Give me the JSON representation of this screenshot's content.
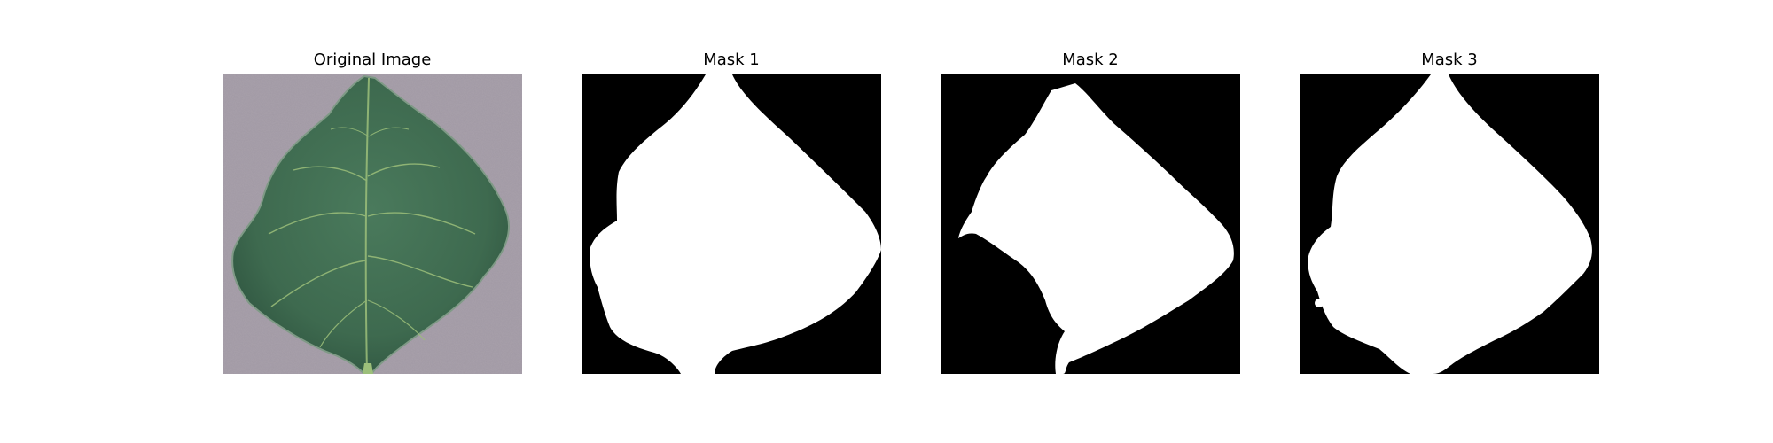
{
  "figure": {
    "panels": [
      {
        "title": "Original Image",
        "kind": "photo"
      },
      {
        "title": "Mask 1",
        "kind": "mask"
      },
      {
        "title": "Mask 2",
        "kind": "mask"
      },
      {
        "title": "Mask 3",
        "kind": "mask"
      }
    ],
    "colors": {
      "background": "#ffffff",
      "mask_background": "#000000",
      "mask_foreground": "#ffffff",
      "photo_background": "#a8a0ab",
      "leaf": "#3e6a4f",
      "leaf_vein": "#9cbf7a"
    }
  }
}
